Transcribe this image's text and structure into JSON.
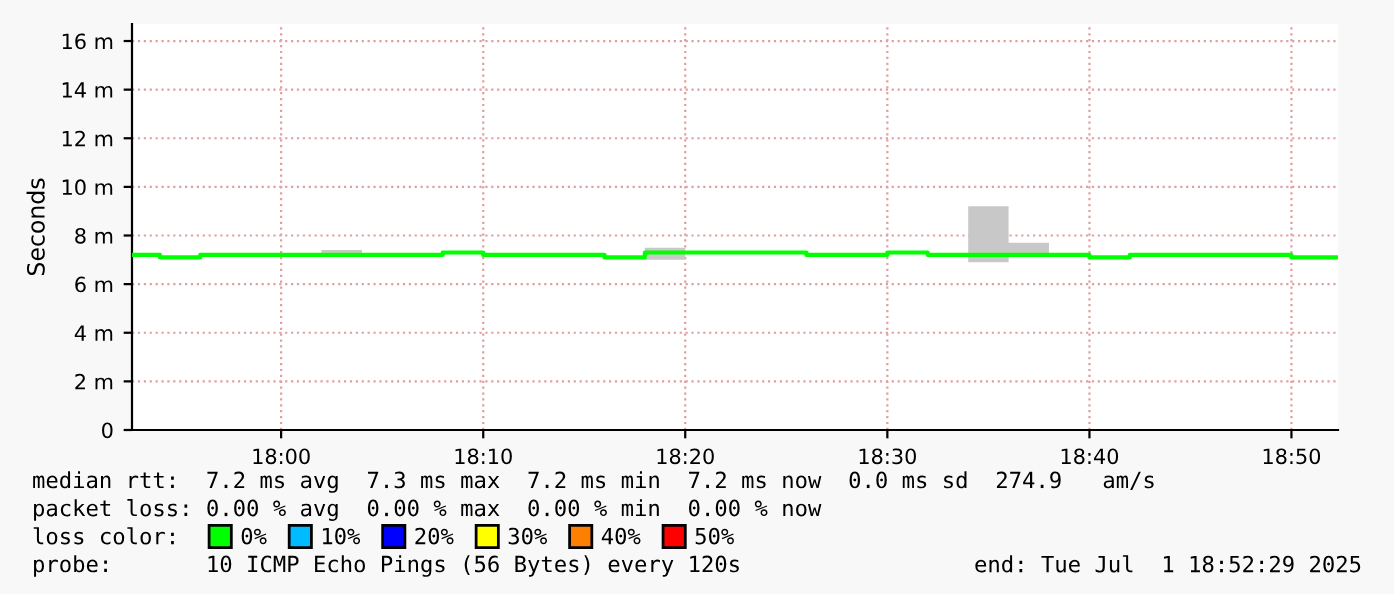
{
  "chart_data": {
    "type": "step",
    "ylabel": "Seconds",
    "x": [
      17.877,
      17.9,
      17.9333,
      17.9667,
      18.0,
      18.0333,
      18.0667,
      18.1,
      18.1333,
      18.1667,
      18.2,
      18.2333,
      18.2667,
      18.3,
      18.3333,
      18.3667,
      18.4,
      18.4333,
      18.4667,
      18.5,
      18.5333,
      18.5667,
      18.6,
      18.6333,
      18.6667,
      18.7,
      18.7333,
      18.7667,
      18.8,
      18.8333,
      18.8717
    ],
    "series": [
      {
        "name": "0%",
        "color": "#00ff00",
        "values": [
          7.2,
          7.1,
          7.2,
          7.2,
          7.2,
          7.2,
          7.2,
          7.2,
          7.3,
          7.2,
          7.2,
          7.2,
          7.1,
          7.3,
          7.3,
          7.3,
          7.3,
          7.2,
          7.2,
          7.3,
          7.2,
          7.2,
          7.2,
          7.2,
          7.1,
          7.2,
          7.2,
          7.2,
          7.2,
          7.1,
          7.1
        ],
        "lower": [
          7.2,
          7.1,
          7.2,
          7.2,
          7.2,
          7.2,
          7.2,
          7.2,
          7.3,
          7.2,
          7.2,
          7.2,
          7.1,
          7.0,
          7.3,
          7.3,
          7.3,
          7.2,
          7.2,
          7.3,
          7.2,
          6.9,
          7.2,
          7.2,
          7.1,
          7.2,
          7.2,
          7.2,
          7.2,
          7.1,
          7.1
        ],
        "upper": [
          7.2,
          7.1,
          7.2,
          7.2,
          7.2,
          7.4,
          7.2,
          7.2,
          7.3,
          7.2,
          7.2,
          7.2,
          7.1,
          7.5,
          7.3,
          7.3,
          7.3,
          7.2,
          7.2,
          7.3,
          7.2,
          9.2,
          7.7,
          7.2,
          7.1,
          7.2,
          7.2,
          7.2,
          7.2,
          7.1,
          7.1
        ]
      },
      {
        "name": "10%",
        "color": "#00bbff",
        "values": [
          null,
          null,
          null,
          null,
          null,
          null,
          null,
          null,
          null,
          null,
          null,
          null,
          null,
          null,
          null,
          null,
          null,
          null,
          null,
          null,
          null,
          null,
          null,
          null,
          null,
          null,
          null,
          null,
          null,
          null,
          null
        ]
      },
      {
        "name": "20%",
        "color": "#0000ff",
        "values": [
          null,
          null,
          null,
          null,
          null,
          null,
          null,
          null,
          null,
          null,
          null,
          null,
          null,
          null,
          null,
          null,
          null,
          null,
          null,
          null,
          null,
          null,
          null,
          null,
          null,
          null,
          null,
          null,
          null,
          null,
          null
        ]
      },
      {
        "name": "30%",
        "color": "#ffff00",
        "values": [
          null,
          null,
          null,
          null,
          null,
          null,
          null,
          null,
          null,
          null,
          null,
          null,
          null,
          null,
          null,
          null,
          null,
          null,
          null,
          null,
          null,
          null,
          null,
          null,
          null,
          null,
          null,
          null,
          null,
          null,
          null
        ]
      },
      {
        "name": "40%",
        "color": "#ff8000",
        "values": [
          null,
          null,
          null,
          null,
          null,
          null,
          null,
          null,
          null,
          null,
          null,
          null,
          null,
          null,
          null,
          null,
          null,
          null,
          null,
          null,
          null,
          null,
          null,
          null,
          null,
          null,
          null,
          null,
          null,
          null,
          null
        ]
      },
      {
        "name": "50%",
        "color": "#ff0000",
        "values": [
          null,
          null,
          null,
          null,
          null,
          null,
          null,
          null,
          null,
          null,
          null,
          null,
          null,
          null,
          null,
          null,
          null,
          null,
          null,
          null,
          null,
          null,
          null,
          null,
          null,
          null,
          null,
          null,
          null,
          null,
          null
        ]
      }
    ],
    "xlim": [
      17.877,
      18.8717
    ],
    "ylim": [
      0,
      16.7
    ],
    "xticks": [
      {
        "value": 18.0,
        "label": "18:00"
      },
      {
        "value": 18.1667,
        "label": "18:10"
      },
      {
        "value": 18.3333,
        "label": "18:20"
      },
      {
        "value": 18.5,
        "label": "18:30"
      },
      {
        "value": 18.6667,
        "label": "18:40"
      },
      {
        "value": 18.8333,
        "label": "18:50"
      }
    ],
    "yticks": [
      0,
      {
        "value": 2,
        "label": "2 m"
      },
      {
        "value": 4,
        "label": "4 m"
      },
      {
        "value": 6,
        "label": "6 m"
      },
      {
        "value": 8,
        "label": "8 m"
      },
      {
        "value": 10,
        "label": "10 m"
      },
      {
        "value": 12,
        "label": "12 m"
      },
      {
        "value": 14,
        "label": "14 m"
      },
      {
        "value": 16,
        "label": "16 m"
      }
    ],
    "grid": true,
    "legend": "bottom",
    "legend_title": "loss color:",
    "annotations": [
      "median rtt:  7.2 ms avg  7.3 ms max  7.2 ms min  7.2 ms now  0.0 ms sd  274.9   am/s",
      "packet loss: 0.00 % avg  0.00 % max  0.00 % min  0.00 % now",
      "probe:       10 ICMP Echo Pings (56 Bytes) every 120s",
      "end: Tue Jul  1 18:52:29 2025"
    ]
  }
}
